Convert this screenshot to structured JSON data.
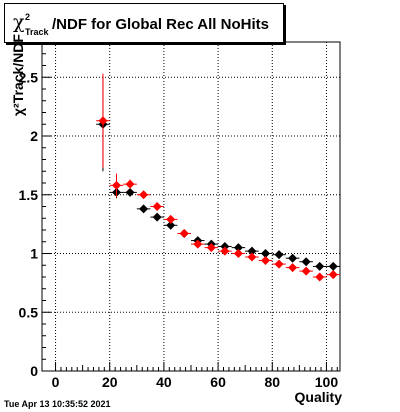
{
  "title": {
    "chi": "χ",
    "sup": "2",
    "sub": "Track",
    "rest": "/NDF for Global Rec All NoHits"
  },
  "ylabel": "χ²Track/NDF",
  "datestamp": "Tue Apr 13 10:35:52 2021",
  "chart_data": {
    "type": "scatter",
    "xlabel": "Quality",
    "ylabel": "χ²_Track/NDF",
    "xlim": [
      -5,
      105
    ],
    "ylim": [
      0,
      2.8
    ],
    "grid": true,
    "x_ticks": [
      0,
      20,
      40,
      60,
      80,
      100
    ],
    "y_ticks": [
      0,
      0.5,
      1,
      1.5,
      2,
      2.5
    ],
    "x_tick_labels": [
      "0",
      "20",
      "40",
      "60",
      "80",
      "100"
    ],
    "y_tick_labels": [
      "0",
      "0.5",
      "1",
      "1.5",
      "2",
      "2.5"
    ],
    "series": [
      {
        "color": "#000000",
        "x": [
          17.5,
          22.5,
          27.5,
          32.5,
          37.5,
          42.5,
          47.5,
          52.5,
          57.5,
          62.5,
          67.5,
          72.5,
          77.5,
          82.5,
          87.5,
          92.5,
          97.5,
          102.5
        ],
        "y": [
          2.1,
          1.52,
          1.52,
          1.38,
          1.31,
          1.24,
          1.17,
          1.11,
          1.08,
          1.06,
          1.05,
          1.02,
          1.0,
          0.99,
          0.96,
          0.93,
          0.89,
          0.89
        ],
        "yerr": [
          0.4,
          0.05,
          0.03,
          0.02,
          0.02,
          0.015,
          0.015,
          0.01,
          0.01,
          0.01,
          0.01,
          0.01,
          0.01,
          0.01,
          0.01,
          0.01,
          0.01,
          0.01
        ]
      },
      {
        "color": "#ff0000",
        "x": [
          17.5,
          22.5,
          27.5,
          32.5,
          37.5,
          42.5,
          47.5,
          52.5,
          57.5,
          62.5,
          67.5,
          72.5,
          77.5,
          82.5,
          87.5,
          92.5,
          97.5,
          102.5
        ],
        "y": [
          2.13,
          1.58,
          1.59,
          1.5,
          1.4,
          1.29,
          1.17,
          1.08,
          1.05,
          1.02,
          1.0,
          0.97,
          0.94,
          0.91,
          0.88,
          0.85,
          0.8,
          0.82
        ],
        "yerr": [
          0.4,
          0.1,
          0.04,
          0.03,
          0.02,
          0.02,
          0.015,
          0.01,
          0.01,
          0.01,
          0.01,
          0.01,
          0.01,
          0.01,
          0.01,
          0.01,
          0.01,
          0.01
        ]
      }
    ]
  }
}
